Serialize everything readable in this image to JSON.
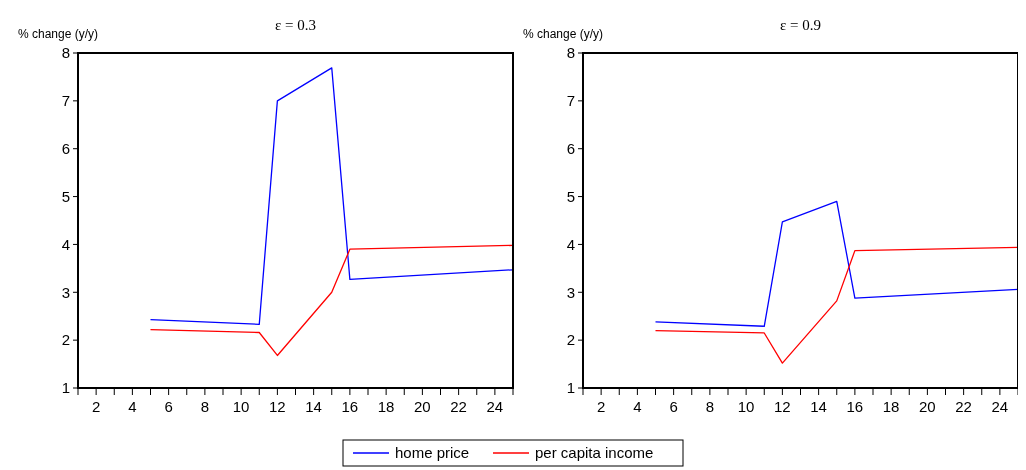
{
  "chart_data": [
    {
      "type": "line",
      "title": "ε = 0.3",
      "ylabel": "% change (y/y)",
      "xlim": [
        1,
        25
      ],
      "xticks": [
        {
          "value": 1,
          "label": null
        },
        2,
        {
          "value": 3,
          "label": null
        },
        4,
        {
          "value": 5,
          "label": null
        },
        6,
        {
          "value": 7,
          "label": null
        },
        8,
        {
          "value": 9,
          "label": null
        },
        10,
        {
          "value": 11,
          "label": null
        },
        12,
        {
          "value": 13,
          "label": null
        },
        14,
        {
          "value": 15,
          "label": null
        },
        16,
        {
          "value": 17,
          "label": null
        },
        18,
        {
          "value": 19,
          "label": null
        },
        20,
        {
          "value": 21,
          "label": null
        },
        22,
        {
          "value": 23,
          "label": null
        },
        24,
        {
          "value": 25,
          "label": null
        }
      ],
      "ylim": [
        1,
        8
      ],
      "yticks": [
        1,
        2,
        3,
        4,
        5,
        6,
        7,
        8
      ],
      "grid": false,
      "legend": "bottom",
      "x": [
        5,
        11,
        12,
        15,
        16,
        25
      ],
      "series": [
        {
          "name": "home price",
          "color": "#0000ff",
          "values": [
            2.43,
            2.33,
            7.0,
            7.69,
            3.27,
            3.47
          ]
        },
        {
          "name": "per capita income",
          "color": "#ff0000",
          "values": [
            2.22,
            2.16,
            1.68,
            3.0,
            3.9,
            3.98
          ]
        }
      ]
    },
    {
      "type": "line",
      "title": "ε = 0.9",
      "ylabel": "% change (y/y)",
      "xlim": [
        1,
        25
      ],
      "xticks": [
        {
          "value": 1,
          "label": null
        },
        2,
        {
          "value": 3,
          "label": null
        },
        4,
        {
          "value": 5,
          "label": null
        },
        6,
        {
          "value": 7,
          "label": null
        },
        8,
        {
          "value": 9,
          "label": null
        },
        10,
        {
          "value": 11,
          "label": null
        },
        12,
        {
          "value": 13,
          "label": null
        },
        14,
        {
          "value": 15,
          "label": null
        },
        16,
        {
          "value": 17,
          "label": null
        },
        18,
        {
          "value": 19,
          "label": null
        },
        20,
        {
          "value": 21,
          "label": null
        },
        22,
        {
          "value": 23,
          "label": null
        },
        24,
        {
          "value": 25,
          "label": null
        }
      ],
      "ylim": [
        1,
        8
      ],
      "yticks": [
        1,
        2,
        3,
        4,
        5,
        6,
        7,
        8
      ],
      "grid": false,
      "x": [
        5,
        11,
        12,
        15,
        16,
        25
      ],
      "series": [
        {
          "color": "#0000ff",
          "values": [
            2.38,
            2.29,
            4.47,
            4.9,
            2.88,
            3.06
          ]
        },
        {
          "color": "#ff0000",
          "values": [
            2.2,
            2.15,
            1.52,
            2.82,
            3.87,
            3.94
          ]
        }
      ]
    }
  ]
}
